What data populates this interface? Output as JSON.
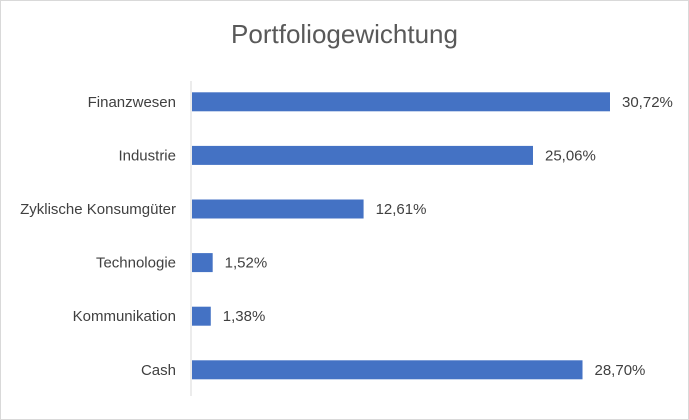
{
  "chart_data": {
    "type": "bar",
    "orientation": "horizontal",
    "title": "Portfoliogewichtung",
    "categories": [
      "Finanzwesen",
      "Industrie",
      "Zyklische Konsumgüter",
      "Technologie",
      "Kommunikation",
      "Cash"
    ],
    "values": [
      30.72,
      25.06,
      12.61,
      1.52,
      1.38,
      28.7
    ],
    "value_labels": [
      "30,72%",
      "25,06%",
      "12,61%",
      "1,52%",
      "1,38%",
      "28,70%"
    ],
    "xlim": [
      0,
      35
    ],
    "bar_color": "#4472c4",
    "grid": false,
    "legend": "none"
  }
}
